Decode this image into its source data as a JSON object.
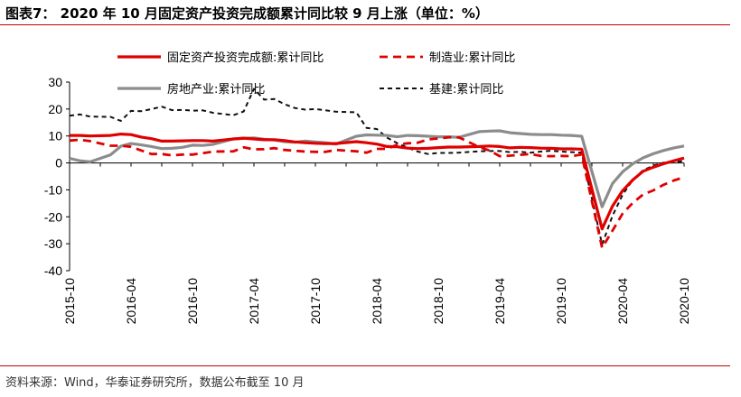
{
  "page": {
    "title": "图表7： 2020 年 10 月固定资产投资完成额累计同比较 9 月上涨（单位：%）",
    "source": "资料来源：Wind，华泰证券研究所，数据公布截至 10 月"
  },
  "chart_data": {
    "type": "line",
    "title": "",
    "xlabel": "",
    "ylabel": "",
    "ylim": [
      -40,
      30
    ],
    "yticks": [
      30,
      20,
      10,
      0,
      -10,
      -20,
      -30,
      -40
    ],
    "x": [
      "2015-10",
      "2015-11",
      "2015-12",
      "2016-02",
      "2016-03",
      "2016-04",
      "2016-05",
      "2016-06",
      "2016-07",
      "2016-08",
      "2016-09",
      "2016-10",
      "2016-11",
      "2016-12",
      "2017-02",
      "2017-03",
      "2017-04",
      "2017-05",
      "2017-06",
      "2017-07",
      "2017-08",
      "2017-09",
      "2017-10",
      "2017-11",
      "2017-12",
      "2018-02",
      "2018-03",
      "2018-04",
      "2018-05",
      "2018-06",
      "2018-07",
      "2018-08",
      "2018-09",
      "2018-10",
      "2018-11",
      "2018-12",
      "2019-02",
      "2019-03",
      "2019-04",
      "2019-05",
      "2019-06",
      "2019-07",
      "2019-08",
      "2019-09",
      "2019-10",
      "2019-11",
      "2019-12",
      "2020-02",
      "2020-03",
      "2020-04",
      "2020-05",
      "2020-06",
      "2020-07",
      "2020-08",
      "2020-09",
      "2020-10"
    ],
    "xtick_labels": [
      "2015-10",
      "2016-04",
      "2016-10",
      "2017-04",
      "2017-10",
      "2018-04",
      "2018-10",
      "2019-04",
      "2019-10",
      "2020-04",
      "2020-10"
    ],
    "legend": {
      "placement": "top",
      "columns": 2
    },
    "series": [
      {
        "name": "固定资产投资完成额:累计同比",
        "color": "#e00000",
        "style": "solid",
        "values": [
          10.2,
          10.2,
          10.0,
          10.2,
          10.7,
          10.5,
          9.6,
          9.0,
          8.1,
          8.1,
          8.2,
          8.3,
          8.3,
          8.1,
          8.9,
          9.2,
          8.9,
          8.6,
          8.6,
          8.3,
          7.8,
          7.5,
          7.3,
          7.2,
          7.2,
          7.9,
          7.5,
          7.0,
          6.1,
          6.0,
          5.5,
          5.3,
          5.4,
          5.7,
          5.9,
          5.9,
          6.1,
          6.3,
          6.1,
          5.6,
          5.8,
          5.7,
          5.5,
          5.4,
          5.2,
          5.2,
          5.1,
          -24.5,
          -16.1,
          -10.3,
          -6.3,
          -3.1,
          -1.6,
          -0.3,
          0.8,
          1.8
        ]
      },
      {
        "name": "制造业:累计同比",
        "color": "#e00000",
        "style": "dashed",
        "values": [
          8.3,
          8.6,
          8.1,
          6.4,
          6.4,
          6.0,
          4.6,
          3.3,
          3.3,
          2.8,
          3.1,
          3.1,
          3.6,
          4.2,
          4.3,
          5.8,
          5.0,
          5.1,
          5.5,
          4.8,
          4.5,
          4.2,
          4.1,
          4.1,
          4.8,
          4.3,
          3.8,
          5.2,
          5.2,
          6.8,
          7.3,
          7.5,
          8.7,
          9.1,
          9.5,
          9.5,
          5.9,
          4.6,
          2.5,
          2.7,
          3.0,
          3.3,
          2.6,
          2.5,
          2.6,
          2.5,
          3.1,
          -31.5,
          -25.2,
          -18.8,
          -14.8,
          -11.7,
          -10.2,
          -8.1,
          -6.5,
          -5.3
        ]
      },
      {
        "name": "房地产业:累计同比",
        "color": "#8c8c8c",
        "style": "solid",
        "values": [
          1.7,
          0.8,
          0.4,
          3.0,
          6.2,
          7.2,
          6.7,
          6.1,
          5.3,
          5.4,
          5.8,
          6.6,
          6.5,
          6.9,
          8.9,
          9.1,
          9.3,
          8.8,
          8.5,
          7.9,
          7.7,
          8.1,
          7.8,
          7.5,
          7.0,
          9.9,
          10.4,
          10.3,
          10.2,
          9.7,
          10.2,
          10.1,
          9.9,
          9.7,
          9.7,
          9.5,
          11.6,
          11.8,
          11.9,
          11.2,
          10.9,
          10.6,
          10.5,
          10.5,
          10.3,
          10.2,
          9.9,
          -16.3,
          -7.7,
          -3.3,
          -0.3,
          1.9,
          3.4,
          4.6,
          5.6,
          6.3
        ]
      },
      {
        "name": "基建:累计同比",
        "color": "#111111",
        "style": "dashed",
        "values": [
          17.5,
          18.0,
          17.2,
          17.1,
          15.6,
          19.3,
          19.2,
          20.0,
          20.9,
          19.6,
          19.7,
          19.4,
          19.5,
          18.6,
          17.7,
          19.1,
          27.5,
          23.5,
          23.7,
          21.8,
          20.4,
          19.8,
          20.0,
          19.5,
          19.0,
          18.8,
          13.0,
          12.6,
          9.4,
          7.3,
          5.7,
          4.2,
          3.3,
          3.7,
          3.7,
          3.8,
          4.3,
          4.4,
          4.4,
          4.0,
          4.1,
          3.8,
          4.2,
          4.5,
          4.2,
          4.0,
          3.8,
          -30.3,
          -19.7,
          -11.8,
          -6.3,
          -2.7,
          -1.0,
          0.1,
          0.2,
          0.7
        ]
      }
    ]
  }
}
